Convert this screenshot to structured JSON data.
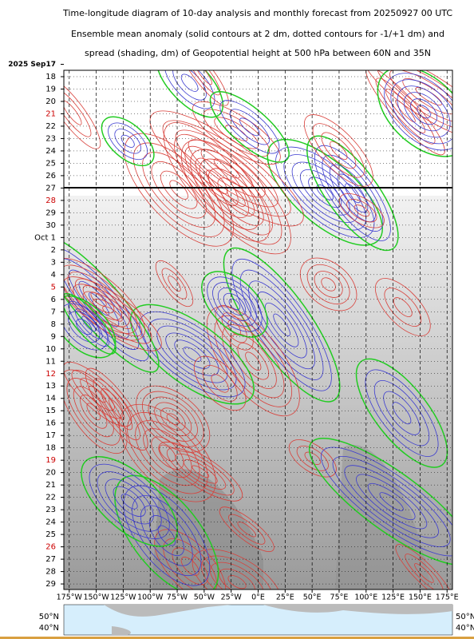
{
  "chart_data": {
    "type": "hovmoller",
    "title": "Time-longitude diagram of 10-day analysis and monthly forecast from 20250927 00 UTC",
    "subtitle": [
      "Ensemble mean anomaly (solid contours at 2 dm, dotted contours for -1/+1 dm) and",
      "spread (shading, dm) of Geopotential height at 500 hPa between 60N and 35N"
    ],
    "categories": [
      "2025 Sep17",
      "18",
      "19",
      "20",
      "21",
      "22",
      "23",
      "24",
      "25",
      "26",
      "27",
      "28",
      "29",
      "30",
      "Oct  1",
      "2",
      "3",
      "4",
      "5",
      "6",
      "7",
      "8",
      "9",
      "10",
      "11",
      "12",
      "13",
      "14",
      "15",
      "16",
      "17",
      "18",
      "19",
      "20",
      "21",
      "22",
      "23",
      "24",
      "25",
      "26",
      "27",
      "28",
      "29"
    ],
    "category_colors": [
      "#000",
      "#000",
      "#000",
      "#000",
      "#cc0000",
      "#000",
      "#000",
      "#000",
      "#000",
      "#000",
      "#000",
      "#cc0000",
      "#000",
      "#000",
      "#000",
      "#000",
      "#000",
      "#000",
      "#cc0000",
      "#000",
      "#000",
      "#000",
      "#000",
      "#000",
      "#000",
      "#cc0000",
      "#000",
      "#000",
      "#000",
      "#000",
      "#000",
      "#000",
      "#cc0000",
      "#000",
      "#000",
      "#000",
      "#000",
      "#000",
      "#000",
      "#cc0000",
      "#000",
      "#000",
      "#000"
    ],
    "xlim": [
      -180,
      180
    ],
    "xticks": [
      {
        "value": -175,
        "label": "175°W"
      },
      {
        "value": -150,
        "label": "150°W"
      },
      {
        "value": -125,
        "label": "125°W"
      },
      {
        "value": -100,
        "label": "100°W"
      },
      {
        "value": -75,
        "label": "75°W"
      },
      {
        "value": -50,
        "label": "50°W"
      },
      {
        "value": -25,
        "label": "25°W"
      },
      {
        "value": 0,
        "label": "0°E"
      },
      {
        "value": 25,
        "label": "25°E"
      },
      {
        "value": 50,
        "label": "50°E"
      },
      {
        "value": 75,
        "label": "75°E"
      },
      {
        "value": 100,
        "label": "100°E"
      },
      {
        "value": 125,
        "label": "125°E"
      },
      {
        "value": 150,
        "label": "150°E"
      },
      {
        "value": 175,
        "label": "175°E"
      }
    ],
    "grid": true,
    "map_lat_labels": [
      "50°N",
      "40°N"
    ]
  }
}
